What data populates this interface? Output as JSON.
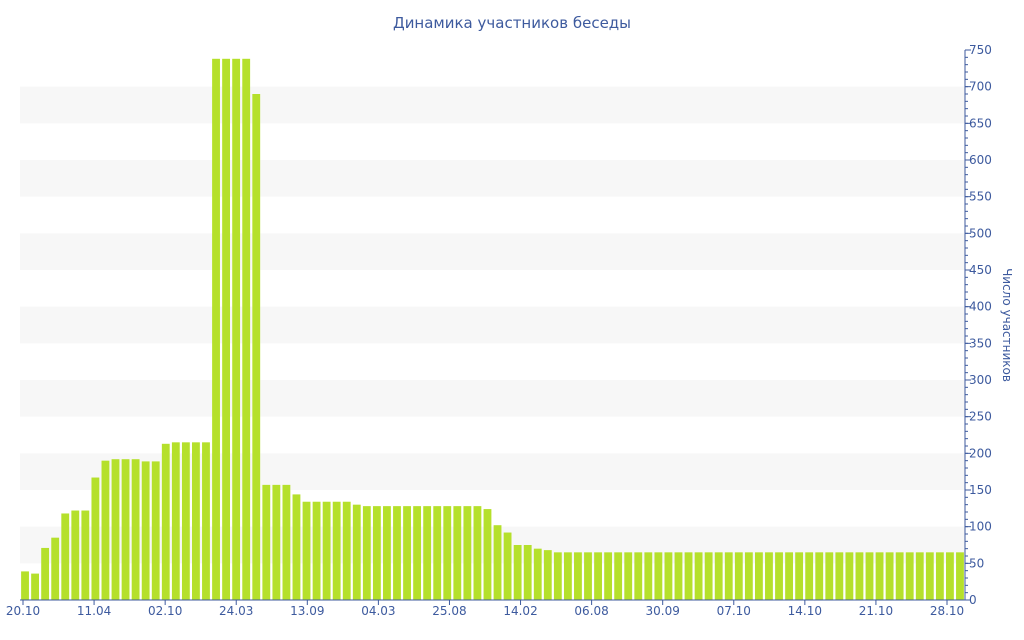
{
  "chart_data": {
    "type": "bar",
    "title": "Динамика участников беседы",
    "xlabel": "",
    "ylabel": "Число участников",
    "ylim": [
      0,
      750
    ],
    "yticks": [
      0,
      50,
      100,
      150,
      200,
      250,
      300,
      350,
      400,
      450,
      500,
      550,
      600,
      650,
      700,
      750
    ],
    "y_axis_position": "right",
    "grid": "alternating horizontal bands",
    "x_tick_labels": [
      "20.10",
      "11.04",
      "02.10",
      "24.03",
      "13.09",
      "04.03",
      "25.08",
      "14.02",
      "06.08",
      "30.09",
      "07.10",
      "14.10",
      "21.10",
      "28.10"
    ],
    "values": [
      39,
      36,
      71,
      85,
      118,
      122,
      122,
      167,
      190,
      192,
      192,
      192,
      189,
      189,
      213,
      215,
      215,
      215,
      215,
      738,
      738,
      738,
      738,
      690,
      157,
      157,
      157,
      144,
      134,
      134,
      134,
      134,
      134,
      130,
      128,
      128,
      128,
      128,
      128,
      128,
      128,
      128,
      128,
      128,
      128,
      128,
      124,
      102,
      92,
      75,
      75,
      70,
      68,
      65,
      65,
      65,
      65,
      65,
      65,
      65,
      65,
      65,
      65,
      65,
      65,
      65,
      65,
      65,
      65,
      65,
      65,
      65,
      65,
      65,
      65,
      65,
      65,
      65,
      65,
      65,
      65,
      65,
      65,
      65,
      65,
      65,
      65,
      65,
      65,
      65,
      65,
      65,
      65,
      65
    ],
    "bar_color": "#b5e02b",
    "band_color": "#f7f7f7",
    "axis_color": "#3d5a9e"
  }
}
